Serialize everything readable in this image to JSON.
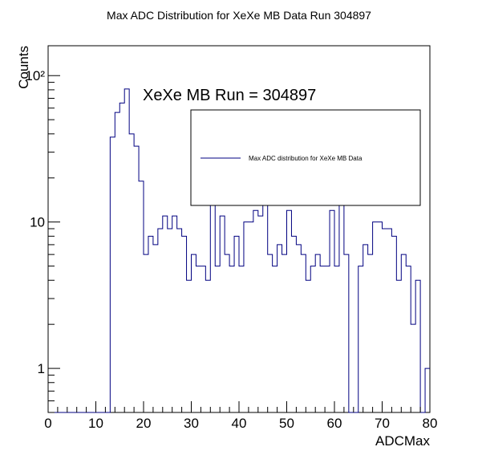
{
  "chart_data": {
    "type": "histogram",
    "title": "Max ADC Distribution for XeXe MB Data Run 304897",
    "xlabel": "ADCMax",
    "ylabel": "Counts",
    "xlim": [
      0,
      80
    ],
    "ylim": [
      0.5,
      160
    ],
    "y_scale": "log",
    "bin_width": 1,
    "x_ticks": [
      "0",
      "10",
      "20",
      "30",
      "40",
      "50",
      "60",
      "70",
      "80"
    ],
    "y_ticks": [
      "1",
      "10",
      "10²"
    ],
    "annotation": "XeXe MB Run = 304897",
    "legend": {
      "position": "top-right",
      "entries": [
        "Max ADC distribution for XeXe MB Data"
      ]
    },
    "series": [
      {
        "name": "Max ADC distribution for XeXe MB Data",
        "color": "#000080",
        "x": [
          0,
          1,
          2,
          3,
          4,
          5,
          6,
          7,
          8,
          9,
          10,
          11,
          12,
          13,
          14,
          15,
          16,
          17,
          18,
          19,
          20,
          21,
          22,
          23,
          24,
          25,
          26,
          27,
          28,
          29,
          30,
          31,
          32,
          33,
          34,
          35,
          36,
          37,
          38,
          39,
          40,
          41,
          42,
          43,
          44,
          45,
          46,
          47,
          48,
          49,
          50,
          51,
          52,
          53,
          54,
          55,
          56,
          57,
          58,
          59,
          60,
          61,
          62,
          63,
          64,
          65,
          66,
          67,
          68,
          69,
          70,
          71,
          72,
          73,
          74,
          75,
          76,
          77,
          78,
          79
        ],
        "values": [
          0,
          0,
          0,
          0,
          0,
          0,
          0,
          0,
          0,
          0,
          0,
          0,
          0,
          38,
          56,
          65,
          81,
          40,
          33,
          19,
          6,
          8,
          7,
          9,
          11,
          9,
          11,
          9,
          8,
          4,
          6,
          5,
          5,
          4,
          13,
          5,
          11,
          6,
          5,
          8,
          5,
          10,
          10,
          12,
          11,
          13,
          6,
          5,
          7,
          6,
          12,
          8,
          7,
          6,
          4,
          5,
          6,
          5,
          5,
          12,
          5,
          13,
          6,
          0,
          0,
          5,
          7,
          6,
          10,
          10,
          9,
          9,
          8,
          4,
          6,
          5,
          2,
          4,
          0,
          1
        ]
      }
    ]
  }
}
